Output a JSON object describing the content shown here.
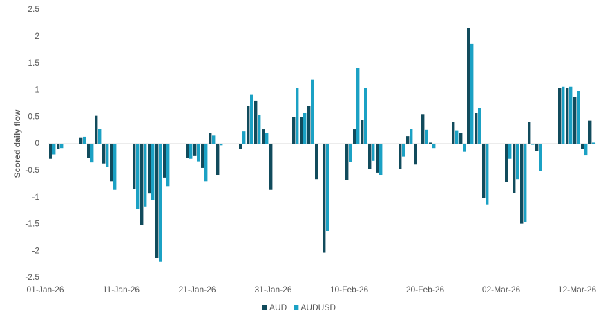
{
  "chart_data": {
    "type": "bar",
    "y_label": "Scored daily flow",
    "categories": [
      "01-Jan-26",
      null,
      null,
      null,
      null,
      null,
      null,
      null,
      null,
      null,
      "11-Jan-26",
      null,
      null,
      null,
      null,
      null,
      null,
      null,
      null,
      null,
      "21-Jan-26",
      null,
      null,
      null,
      null,
      null,
      null,
      null,
      null,
      null,
      "31-Jan-26",
      null,
      null,
      null,
      null,
      null,
      null,
      null,
      null,
      null,
      "10-Feb-26",
      null,
      null,
      null,
      null,
      null,
      null,
      null,
      null,
      null,
      "20-Feb-26",
      null,
      null,
      null,
      null,
      null,
      null,
      null,
      null,
      null,
      "02-Mar-26",
      null,
      null,
      null,
      null,
      null,
      null,
      null,
      null,
      null,
      "12-Mar-26",
      null
    ],
    "series": [
      {
        "name": "AUD",
        "color": "#114b5c",
        "values": [
          -0.28,
          -0.1,
          null,
          null,
          0.12,
          -0.26,
          0.52,
          -0.37,
          -0.7,
          null,
          null,
          -0.84,
          -1.52,
          -0.93,
          -2.13,
          -0.63,
          null,
          null,
          -0.27,
          -0.23,
          -0.45,
          0.2,
          -0.58,
          null,
          null,
          -0.1,
          0.7,
          0.8,
          0.27,
          -0.86,
          null,
          null,
          0.49,
          0.49,
          0.7,
          -0.66,
          -2.03,
          null,
          null,
          -0.67,
          0.27,
          0.45,
          -0.47,
          -0.54,
          null,
          null,
          -0.47,
          0.14,
          -0.39,
          0.55,
          0.02,
          null,
          null,
          0.4,
          0.2,
          2.16,
          0.57,
          -1.01,
          null,
          null,
          -0.72,
          -0.92,
          -1.49,
          0.41,
          -0.14,
          null,
          null,
          1.04,
          1.04,
          0.87,
          -0.1,
          0.43
        ]
      },
      {
        "name": "AUDUSD",
        "color": "#1ba1c4",
        "values": [
          -0.2,
          -0.08,
          null,
          null,
          0.13,
          -0.35,
          0.28,
          -0.43,
          -0.86,
          null,
          null,
          -1.22,
          -1.17,
          -1.05,
          -2.2,
          -0.79,
          null,
          null,
          -0.28,
          -0.33,
          -0.7,
          0.15,
          -0.03,
          null,
          null,
          0.23,
          0.92,
          0.54,
          0.2,
          -0.01,
          null,
          null,
          1.04,
          0.58,
          1.19,
          0,
          -1.63,
          null,
          null,
          -0.34,
          1.41,
          1.04,
          -0.32,
          -0.58,
          null,
          null,
          -0.24,
          0.28,
          0,
          0.26,
          -0.08,
          null,
          null,
          0.25,
          -0.15,
          1.87,
          0.67,
          -1.13,
          null,
          null,
          -0.28,
          -0.66,
          -1.46,
          -0.02,
          -0.51,
          null,
          null,
          1.06,
          1.06,
          0.99,
          -0.22,
          0.02
        ]
      }
    ],
    "ylim": [
      -2.5,
      2.5
    ],
    "yticks": [
      2.5,
      2,
      1.5,
      1,
      0.5,
      0,
      -0.5,
      -1,
      -1.5,
      -2,
      -2.5
    ],
    "grid": false,
    "legend": "bottom"
  }
}
